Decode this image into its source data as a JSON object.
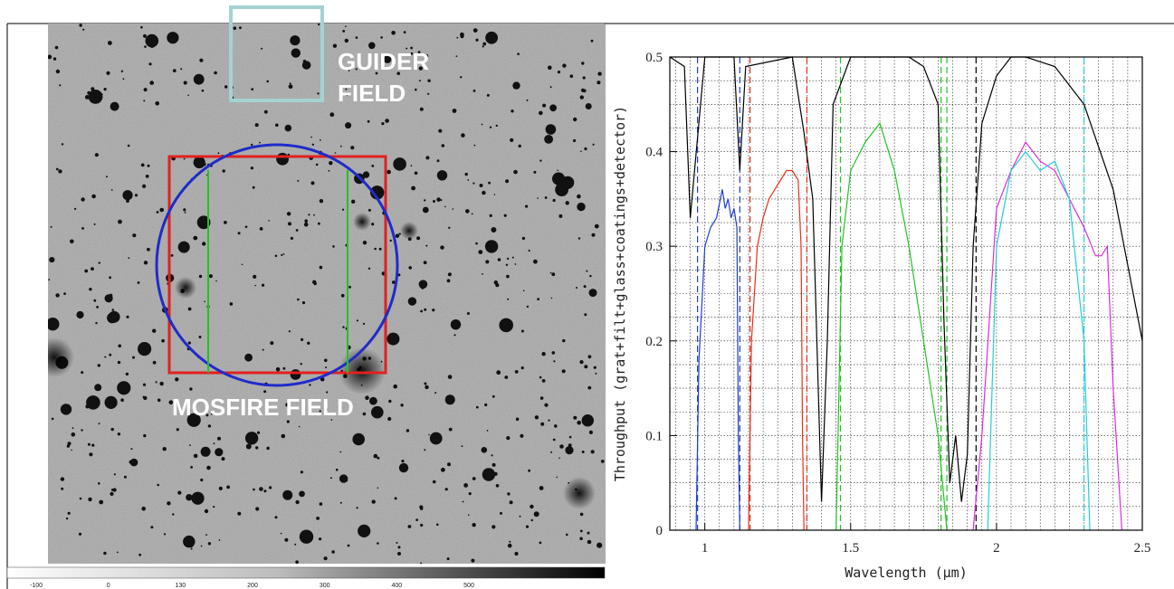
{
  "image_panel": {
    "labels": {
      "guider_line1": "GUIDER",
      "guider_line2": "FIELD",
      "mosfire": "MOSFIRE FIELD"
    },
    "colors": {
      "guider_box": "#a6d2d4",
      "mosfire_square": "#e0211f",
      "mosfire_circle": "#1f2bc9",
      "slit_lines": "#22c322"
    },
    "colorbar": {
      "ticks": [
        "-100",
        "0",
        "130",
        "200",
        "300",
        "400",
        "500"
      ]
    }
  },
  "chart_data": {
    "type": "line",
    "title": "",
    "xlabel": "Wavelength (μm)",
    "ylabel": "Throughput (grat+filt+glass+coatings+detector)",
    "xlim": [
      0.88,
      2.5
    ],
    "ylim": [
      0,
      0.5
    ],
    "x_ticks": [
      1,
      1.5,
      2,
      2.5
    ],
    "x_tick_labels": [
      "1",
      "1.5",
      "2",
      "2.5"
    ],
    "y_ticks": [
      0,
      0.1,
      0.2,
      0.3,
      0.4,
      0.5
    ],
    "y_tick_labels": [
      "0",
      "0.1",
      "0.2",
      "0.3",
      "0.4",
      "0.5"
    ],
    "grid": true,
    "series": [
      {
        "color": "#1f3ed1",
        "x": [
          0.97,
          0.98,
          1.0,
          1.02,
          1.04,
          1.06,
          1.07,
          1.08,
          1.09,
          1.1,
          1.11,
          1.115,
          1.12
        ],
        "y": [
          0.0,
          0.18,
          0.3,
          0.32,
          0.33,
          0.36,
          0.34,
          0.35,
          0.33,
          0.34,
          0.32,
          0.1,
          0.0
        ]
      },
      {
        "color": "#e6311a",
        "x": [
          1.15,
          1.16,
          1.18,
          1.2,
          1.22,
          1.24,
          1.26,
          1.28,
          1.3,
          1.32,
          1.33,
          1.335,
          1.34
        ],
        "y": [
          0.0,
          0.2,
          0.3,
          0.33,
          0.35,
          0.36,
          0.37,
          0.38,
          0.38,
          0.37,
          0.3,
          0.1,
          0.0
        ]
      },
      {
        "color": "#21c321",
        "x": [
          1.45,
          1.47,
          1.5,
          1.55,
          1.6,
          1.65,
          1.7,
          1.75,
          1.8,
          1.83
        ],
        "y": [
          0.0,
          0.3,
          0.38,
          0.41,
          0.43,
          0.38,
          0.3,
          0.2,
          0.1,
          0.0
        ]
      },
      {
        "color": "#dd2cdd",
        "x": [
          1.92,
          1.95,
          2.0,
          2.05,
          2.1,
          2.15,
          2.2,
          2.25,
          2.3,
          2.34,
          2.36,
          2.38,
          2.4,
          2.43
        ],
        "y": [
          0.0,
          0.1,
          0.34,
          0.38,
          0.41,
          0.39,
          0.38,
          0.35,
          0.32,
          0.29,
          0.29,
          0.3,
          0.15,
          0.0
        ]
      },
      {
        "color": "#1fd0d8",
        "x": [
          1.97,
          2.0,
          2.05,
          2.1,
          2.15,
          2.2,
          2.25,
          2.3,
          2.32
        ],
        "y": [
          0.0,
          0.3,
          0.38,
          0.4,
          0.38,
          0.39,
          0.35,
          0.2,
          0.0
        ]
      },
      {
        "color": "#000000",
        "x": [
          0.88,
          0.93,
          0.95,
          1.0,
          1.1,
          1.12,
          1.14,
          1.3,
          1.34,
          1.37,
          1.4,
          1.42,
          1.44,
          1.5,
          1.6,
          1.7,
          1.75,
          1.8,
          1.82,
          1.84,
          1.86,
          1.88,
          1.9,
          1.92,
          1.95,
          2.0,
          2.05,
          2.1,
          2.2,
          2.3,
          2.4,
          2.45,
          2.5
        ],
        "y": [
          0.5,
          0.49,
          0.33,
          0.5,
          0.5,
          0.38,
          0.49,
          0.5,
          0.42,
          0.35,
          0.03,
          0.2,
          0.45,
          0.5,
          0.5,
          0.5,
          0.49,
          0.45,
          0.22,
          0.05,
          0.1,
          0.03,
          0.08,
          0.3,
          0.43,
          0.48,
          0.5,
          0.5,
          0.49,
          0.45,
          0.36,
          0.28,
          0.2
        ]
      }
    ],
    "dashed_markers": [
      {
        "x": 0.975,
        "color": "#1f3ed1"
      },
      {
        "x": 1.12,
        "color": "#1f3ed1"
      },
      {
        "x": 1.155,
        "color": "#e6311a"
      },
      {
        "x": 1.35,
        "color": "#e6311a"
      },
      {
        "x": 1.465,
        "color": "#21c321"
      },
      {
        "x": 1.81,
        "color": "#21c321"
      },
      {
        "x": 1.83,
        "color": "#21c321"
      },
      {
        "x": 1.93,
        "color": "#000000"
      },
      {
        "x": 2.3,
        "color": "#1fd0d8"
      }
    ]
  }
}
